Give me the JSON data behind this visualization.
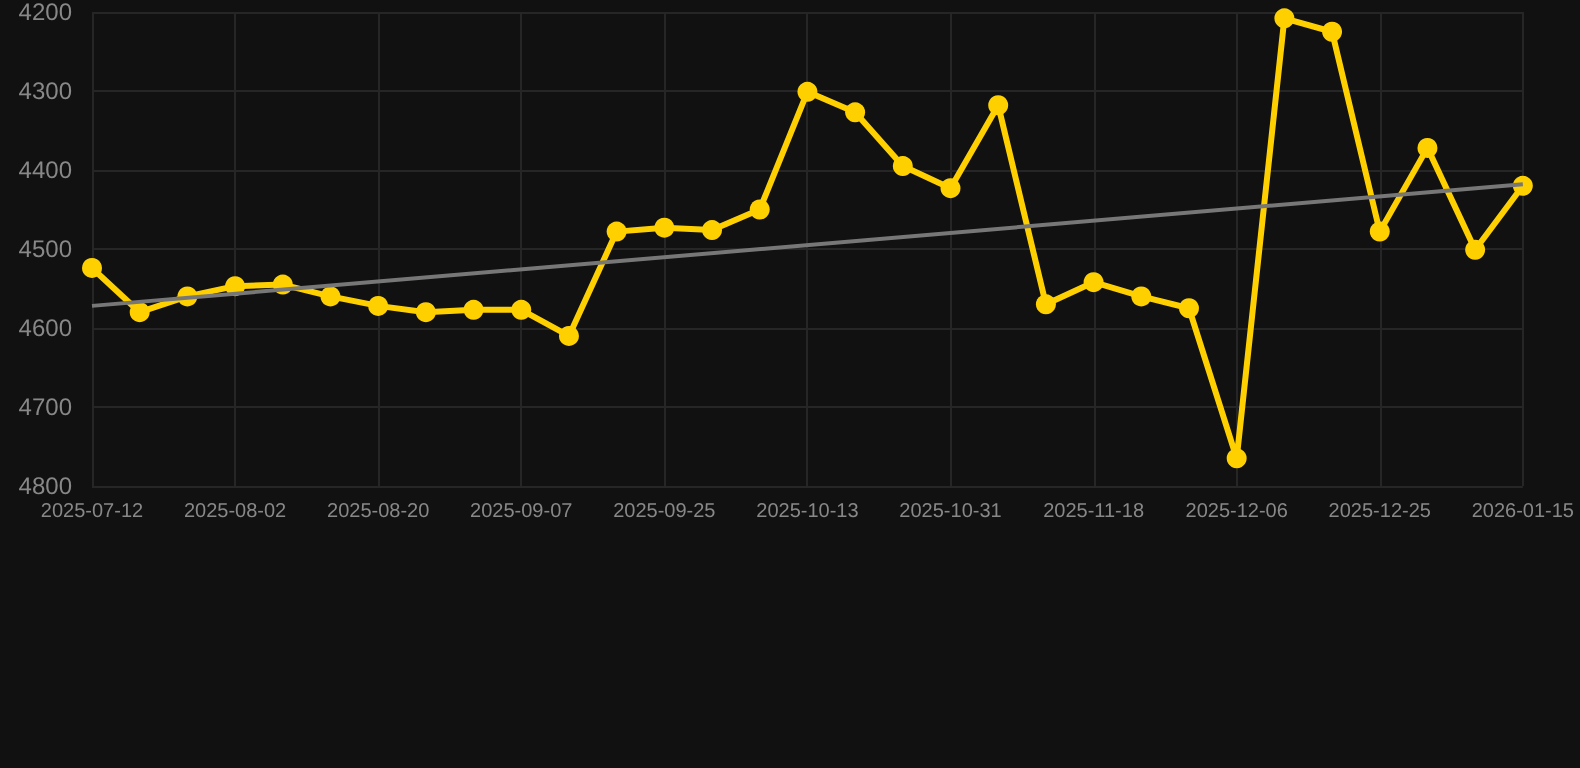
{
  "chart_data": {
    "type": "line",
    "categories": [
      "2025-07-12",
      null,
      null,
      "2025-08-02",
      null,
      null,
      "2025-08-20",
      null,
      null,
      "2025-09-07",
      null,
      null,
      "2025-09-25",
      null,
      null,
      "2025-10-13",
      null,
      null,
      "2025-10-31",
      null,
      null,
      "2025-11-18",
      null,
      null,
      "2025-12-06",
      null,
      null,
      "2025-12-25",
      null,
      null,
      "2026-01-15"
    ],
    "series": [
      {
        "color": "#ffd000",
        "marker": "circle",
        "values": [
          4524,
          4580,
          4560,
          4547,
          4545,
          4560,
          4572,
          4580,
          4577,
          4577,
          4610,
          4478,
          4473,
          4476,
          4450,
          4301,
          4327,
          4395,
          4423,
          4318,
          4570,
          4542,
          4560,
          4575,
          4765,
          4208,
          4225,
          4478,
          4372,
          4501,
          4420
        ]
      },
      {
        "color": "#777777",
        "marker": "none",
        "values": [
          4572,
          null,
          null,
          null,
          null,
          null,
          null,
          null,
          null,
          null,
          null,
          null,
          null,
          null,
          null,
          null,
          null,
          null,
          null,
          null,
          null,
          null,
          null,
          null,
          null,
          null,
          null,
          null,
          null,
          null,
          4418
        ]
      }
    ],
    "ylim": [
      4800,
      4200
    ],
    "yticks": [
      4200,
      4300,
      4400,
      4500,
      4600,
      4700,
      4800
    ],
    "grid": true
  }
}
